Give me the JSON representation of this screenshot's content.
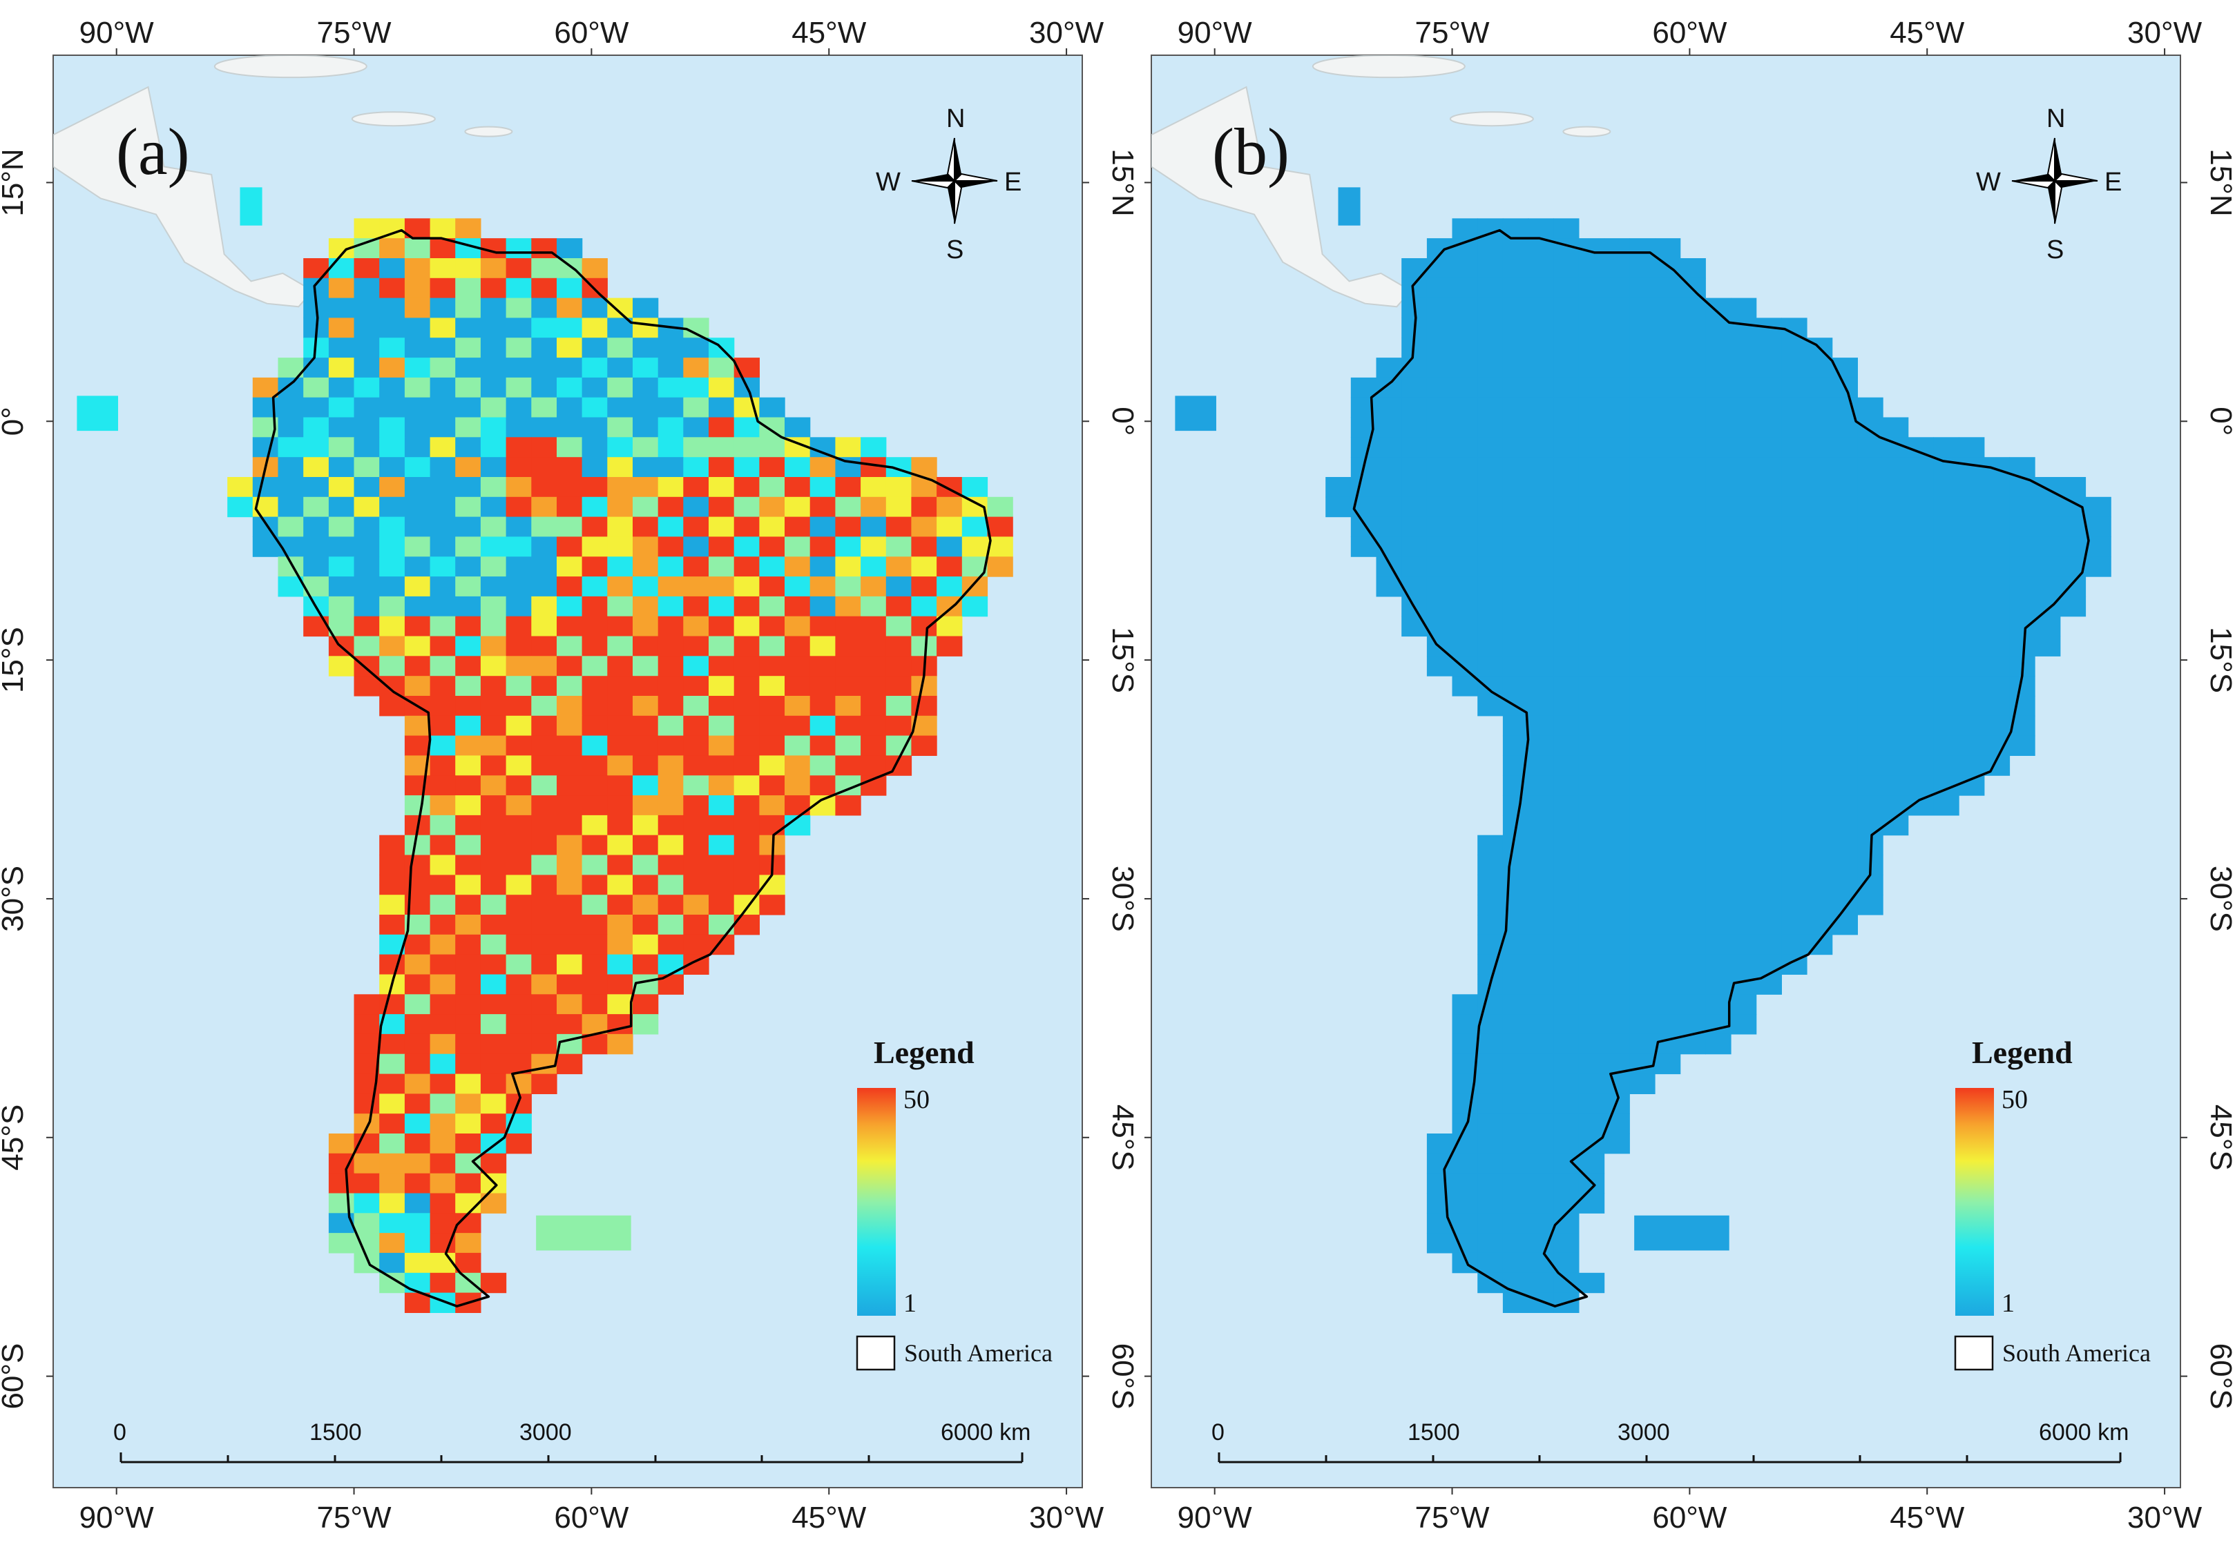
{
  "figure": {
    "panels": [
      {
        "id": "a",
        "label": "(a)",
        "fill_mode": "count",
        "legend": {
          "title": "Legend",
          "max_label": "50",
          "min_label": "1",
          "item_label": "South America"
        }
      },
      {
        "id": "b",
        "label": "(b)",
        "fill_mode": "uniform",
        "legend": {
          "title": "Legend",
          "max_label": "50",
          "min_label": "1",
          "item_label": "South America"
        }
      }
    ],
    "axes": {
      "lon_ticks": [
        "90°W",
        "75°W",
        "60°W",
        "45°W",
        "30°W"
      ],
      "lat_ticks": [
        "15°N",
        "0°",
        "15°S",
        "30°S",
        "45°S",
        "60°S"
      ],
      "lon_values": [
        -90,
        -75,
        -60,
        -45,
        -30
      ],
      "lat_values": [
        15,
        0,
        -15,
        -30,
        -45,
        -60
      ],
      "lon_range": [
        -94,
        -29
      ],
      "lat_range": [
        -67,
        23
      ]
    },
    "compass": {
      "n": "N",
      "s": "S",
      "e": "E",
      "w": "W"
    },
    "scale_bar": {
      "labels": [
        "0",
        "1500",
        "3000",
        "6000 km"
      ]
    },
    "colorbar": {
      "min": 1,
      "max": 50,
      "colors": [
        "#1ca8e0",
        "#22e8ef",
        "#8ff0a8",
        "#f4f039",
        "#f7a22d",
        "#f23b1d"
      ]
    },
    "colors": {
      "ocean": "#cfe9f8",
      "high": "#f23b1d",
      "mid_high": "#f7a22d",
      "mid": "#f4f039",
      "mid_low": "#8ff0a8",
      "low": "#22e8ef",
      "lowest": "#1ca8e0",
      "uniform": "#1fa3e0",
      "coast": "#000000"
    }
  }
}
